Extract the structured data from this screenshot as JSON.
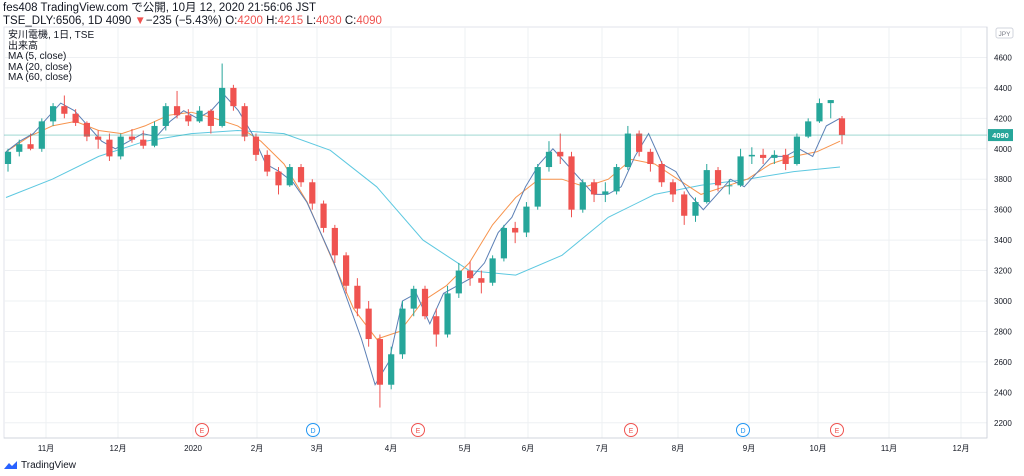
{
  "header": {
    "line1": "fes408 TradingView.com で公開, 10月 12, 2020 21:56:06 JST",
    "symbol": "TSE_DLY:6506, 1D 4090",
    "change_arrow": "▼",
    "change": "−235 (−5.43%)",
    "o_label": "O:",
    "o_value": "4200",
    "h_label": "H:",
    "h_value": "4215",
    "l_label": "L:",
    "l_value": "4030",
    "c_label": "C:",
    "c_value": "4090"
  },
  "legend": {
    "name": "安川電機, 1日, TSE",
    "volume": "出来高",
    "ma5": "MA (5, close)",
    "ma20": "MA (20, close)",
    "ma60": "MA (60, close)"
  },
  "footer": {
    "brand": "TradingView"
  },
  "colors": {
    "up": "#26a69a",
    "down": "#ef5350",
    "ma5": "#5b7fb5",
    "ma20": "#f7934c",
    "ma60": "#5dc8e0",
    "last": "#26a69a"
  },
  "chart_data": {
    "type": "candlestick",
    "currency": "JPY",
    "last_price_label": "4090",
    "y_ticks": [
      2200,
      2400,
      2600,
      2800,
      3000,
      3200,
      3400,
      3600,
      3800,
      4000,
      4200,
      4400,
      4600
    ],
    "ylim": [
      2100,
      4800
    ],
    "grid": true,
    "x_tick_labels": [
      "11月",
      "12月",
      "2020",
      "2月",
      "3月",
      "4月",
      "5月",
      "6月",
      "7月",
      "8月",
      "9月",
      "10月",
      "11月",
      "12月"
    ],
    "events": [
      "E",
      "D",
      "E",
      "E",
      "D",
      "E"
    ],
    "ma5_close": [
      3980,
      4050,
      4100,
      4200,
      4300,
      4250,
      4150,
      4050,
      4000,
      4050,
      4100,
      4080,
      4180,
      4250,
      4200,
      4250,
      4350,
      4250,
      4100,
      3900,
      3850,
      3780,
      3650,
      3450,
      3250,
      3000,
      2750,
      2450,
      2600,
      3000,
      3050,
      2850,
      3050,
      3100,
      3150,
      3250,
      3450,
      3550,
      3750,
      3900,
      4000,
      3900,
      3800,
      3700,
      3700,
      3750,
      3950,
      4100,
      3900,
      3850,
      3700,
      3600,
      3700,
      3800,
      3750,
      3850,
      3950,
      3950,
      4000,
      3950,
      4150,
      4200
    ],
    "ma20_close": [
      3980,
      4080,
      4150,
      4180,
      4120,
      4100,
      4150,
      4220,
      4240,
      4200,
      4150,
      4050,
      3900,
      3650,
      3300,
      2950,
      2750,
      2800,
      3000,
      3100,
      3250,
      3500,
      3680,
      3800,
      3800,
      3750,
      3800,
      3930,
      3900,
      3800,
      3700,
      3750,
      3800,
      3900,
      3950,
      3980,
      4050
    ],
    "ma60_close": [
      3680,
      3800,
      3950,
      4050,
      4100,
      4120,
      4100,
      3990,
      3750,
      3400,
      3200,
      3170,
      3300,
      3550,
      3700,
      3760,
      3800,
      3850,
      3880
    ],
    "ohlc_note": "approximate daily OHLC series, Oct 2019 – Oct 2020",
    "ohlc": [
      [
        3900,
        4000,
        3850,
        3980
      ],
      [
        3980,
        4060,
        3950,
        4030
      ],
      [
        4030,
        4100,
        3990,
        4000
      ],
      [
        4000,
        4200,
        3980,
        4180
      ],
      [
        4180,
        4300,
        4150,
        4280
      ],
      [
        4280,
        4350,
        4200,
        4230
      ],
      [
        4230,
        4260,
        4150,
        4170
      ],
      [
        4170,
        4180,
        4050,
        4080
      ],
      [
        4080,
        4120,
        4000,
        4060
      ],
      [
        4060,
        4100,
        3920,
        3950
      ],
      [
        3950,
        4100,
        3930,
        4080
      ],
      [
        4080,
        4130,
        4040,
        4060
      ],
      [
        4060,
        4120,
        4000,
        4020
      ],
      [
        4020,
        4180,
        4010,
        4150
      ],
      [
        4150,
        4300,
        4120,
        4280
      ],
      [
        4280,
        4380,
        4200,
        4220
      ],
      [
        4220,
        4260,
        4150,
        4180
      ],
      [
        4180,
        4280,
        4170,
        4250
      ],
      [
        4250,
        4260,
        4100,
        4150
      ],
      [
        4150,
        4560,
        4140,
        4400
      ],
      [
        4400,
        4420,
        4250,
        4280
      ],
      [
        4280,
        4300,
        4050,
        4080
      ],
      [
        4080,
        4100,
        3920,
        3960
      ],
      [
        3960,
        3990,
        3820,
        3850
      ],
      [
        3850,
        3880,
        3700,
        3760
      ],
      [
        3760,
        3900,
        3750,
        3880
      ],
      [
        3880,
        3900,
        3750,
        3780
      ],
      [
        3780,
        3800,
        3600,
        3640
      ],
      [
        3640,
        3660,
        3450,
        3480
      ],
      [
        3480,
        3500,
        3250,
        3300
      ],
      [
        3300,
        3320,
        3050,
        3100
      ],
      [
        3100,
        3150,
        2900,
        2950
      ],
      [
        2950,
        3000,
        2700,
        2750
      ],
      [
        2750,
        2780,
        2300,
        2450
      ],
      [
        2450,
        2700,
        2420,
        2650
      ],
      [
        2650,
        3000,
        2620,
        2950
      ],
      [
        2950,
        3100,
        2900,
        3080
      ],
      [
        3080,
        3100,
        2880,
        2900
      ],
      [
        2900,
        2950,
        2700,
        2780
      ],
      [
        2780,
        3100,
        2760,
        3050
      ],
      [
        3050,
        3250,
        3020,
        3200
      ],
      [
        3200,
        3260,
        3100,
        3150
      ],
      [
        3150,
        3200,
        3050,
        3120
      ],
      [
        3120,
        3300,
        3100,
        3280
      ],
      [
        3280,
        3500,
        3260,
        3480
      ],
      [
        3480,
        3520,
        3380,
        3450
      ],
      [
        3450,
        3650,
        3420,
        3620
      ],
      [
        3620,
        3900,
        3600,
        3880
      ],
      [
        3880,
        4050,
        3850,
        3980
      ],
      [
        3980,
        4100,
        3900,
        3950
      ],
      [
        3950,
        3980,
        3550,
        3600
      ],
      [
        3600,
        3800,
        3580,
        3780
      ],
      [
        3780,
        3800,
        3650,
        3700
      ],
      [
        3700,
        3780,
        3650,
        3720
      ],
      [
        3720,
        3900,
        3700,
        3880
      ],
      [
        3880,
        4150,
        3860,
        4100
      ],
      [
        4100,
        4120,
        3950,
        3980
      ],
      [
        3980,
        4000,
        3850,
        3900
      ],
      [
        3900,
        3920,
        3750,
        3780
      ],
      [
        3780,
        3800,
        3650,
        3700
      ],
      [
        3700,
        3720,
        3500,
        3560
      ],
      [
        3560,
        3680,
        3520,
        3650
      ],
      [
        3650,
        3900,
        3640,
        3860
      ],
      [
        3860,
        3880,
        3720,
        3760
      ],
      [
        3760,
        3800,
        3700,
        3760
      ],
      [
        3760,
        4000,
        3750,
        3950
      ],
      [
        3950,
        4010,
        3900,
        3960
      ],
      [
        3960,
        4000,
        3900,
        3940
      ],
      [
        3940,
        3990,
        3900,
        3960
      ],
      [
        3960,
        4000,
        3860,
        3900
      ],
      [
        3900,
        4100,
        3890,
        4080
      ],
      [
        4080,
        4200,
        4070,
        4180
      ],
      [
        4180,
        4330,
        4170,
        4300
      ],
      [
        4300,
        4320,
        4200,
        4320
      ],
      [
        4200,
        4215,
        4030,
        4090
      ]
    ]
  }
}
